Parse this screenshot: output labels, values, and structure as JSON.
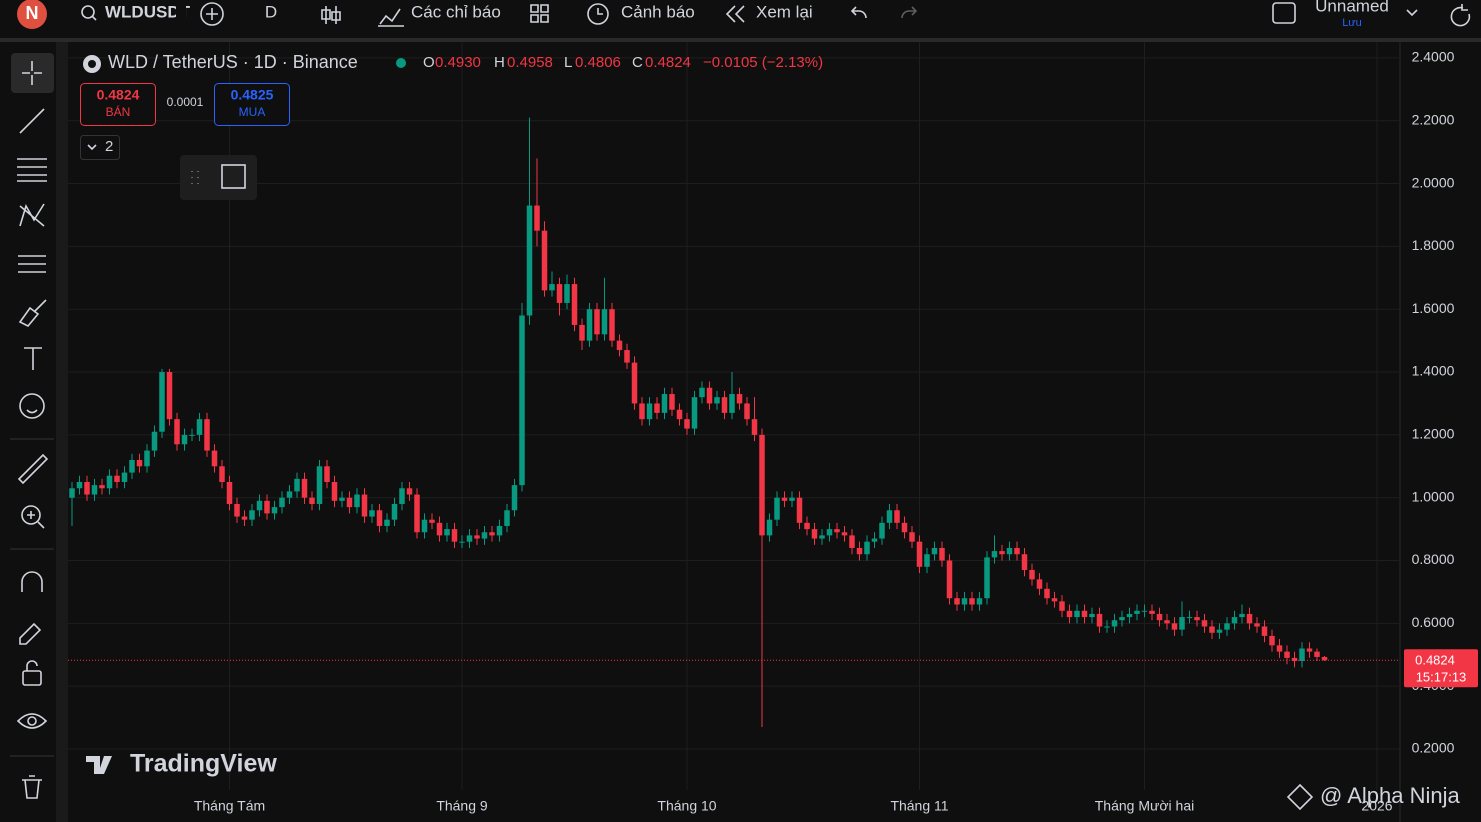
{
  "toolbar": {
    "logo": "N",
    "symbol": "WLDUSDT",
    "interval": "D",
    "indicators": "Các chỉ báo",
    "alerts": "Cảnh báo",
    "replay": "Xem lại",
    "layout_name": "Unnamed",
    "save": "Lưu"
  },
  "chart_data": {
    "type": "candlestick",
    "title": "WLD / TetherUS · 1D · Binance",
    "ohlc_legend": [
      {
        "label": "O",
        "value": "0.4930"
      },
      {
        "label": "H",
        "value": "0.4958"
      },
      {
        "label": "L",
        "value": "0.4806"
      },
      {
        "label": "C",
        "value": "0.4824"
      }
    ],
    "change": "−0.0105 (−2.13%)",
    "trade": {
      "sell_price": 0.4824,
      "sell_label": "BÁN",
      "spread": 0.0001,
      "buy_price": 0.4825,
      "buy_label": "MUA"
    },
    "indicator_count": "2",
    "categories": [
      null,
      null,
      null,
      null,
      null,
      null,
      null,
      null,
      null,
      null,
      null,
      null,
      null,
      null,
      null,
      null,
      null,
      null,
      null,
      null,
      null,
      "Tháng Tám",
      null,
      null,
      null,
      null,
      null,
      null,
      null,
      null,
      null,
      null,
      null,
      null,
      null,
      null,
      null,
      null,
      null,
      null,
      null,
      null,
      null,
      null,
      null,
      null,
      null,
      null,
      null,
      null,
      null,
      null,
      "Tháng 9",
      null,
      null,
      null,
      null,
      null,
      null,
      null,
      null,
      null,
      null,
      null,
      null,
      null,
      null,
      null,
      null,
      null,
      null,
      null,
      null,
      null,
      null,
      null,
      null,
      null,
      null,
      null,
      null,
      null,
      "Tháng 10",
      null,
      null,
      null,
      null,
      null,
      null,
      null,
      null,
      null,
      null,
      null,
      null,
      null,
      null,
      null,
      null,
      null,
      null,
      null,
      null,
      null,
      null,
      null,
      null,
      null,
      null,
      null,
      null,
      null,
      null,
      "Tháng 11",
      null,
      null,
      null,
      null,
      null,
      null,
      null,
      null,
      null,
      null,
      null,
      null,
      null,
      null,
      null,
      null,
      null,
      null,
      null,
      null,
      null,
      null,
      null,
      null,
      null,
      null,
      null,
      null,
      null,
      "Tháng Mười hai",
      null,
      null,
      null,
      null,
      null,
      null,
      null,
      null,
      null,
      null,
      null,
      null,
      null,
      null,
      null,
      null,
      null,
      null,
      null,
      null,
      null,
      null,
      null,
      null,
      null,
      null,
      null,
      null,
      null,
      null,
      "2026"
    ],
    "open": [
      1.0,
      1.03,
      1.05,
      1.01,
      1.04,
      1.03,
      1.07,
      1.05,
      1.08,
      1.12,
      1.1,
      1.15,
      1.21,
      1.4,
      1.25,
      1.17,
      1.2,
      1.2,
      1.25,
      1.15,
      1.1,
      1.05,
      0.98,
      0.94,
      0.93,
      0.96,
      0.99,
      0.95,
      0.97,
      1.0,
      1.02,
      1.06,
      1.0,
      0.98,
      1.1,
      1.05,
      0.99,
      1.0,
      0.97,
      1.01,
      0.94,
      0.96,
      0.91,
      0.93,
      0.98,
      1.03,
      1.01,
      0.89,
      0.93,
      0.92,
      0.88,
      0.9,
      0.86,
      0.86,
      0.88,
      0.87,
      0.89,
      0.88,
      0.91,
      0.96,
      1.04,
      1.58,
      1.93,
      1.85,
      1.66,
      1.68,
      1.62,
      1.68,
      1.55,
      1.5,
      1.6,
      1.52,
      1.6,
      1.5,
      1.47,
      1.43,
      1.3,
      1.25,
      1.3,
      1.27,
      1.33,
      1.28,
      1.25,
      1.22,
      1.32,
      1.35,
      1.3,
      1.32,
      1.27,
      1.33,
      1.3,
      1.25,
      1.2,
      0.88,
      0.93,
      1.0,
      0.99,
      1.0,
      0.92,
      0.9,
      0.87,
      0.88,
      0.9,
      0.89,
      0.88,
      0.84,
      0.82,
      0.86,
      0.87,
      0.92,
      0.96,
      0.92,
      0.89,
      0.86,
      0.78,
      0.82,
      0.84,
      0.8,
      0.68,
      0.66,
      0.68,
      0.66,
      0.68,
      0.81,
      0.83,
      0.82,
      0.84,
      0.82,
      0.77,
      0.74,
      0.71,
      0.68,
      0.67,
      0.64,
      0.62,
      0.64,
      0.62,
      0.63,
      0.59,
      0.59,
      0.61,
      0.62,
      0.63,
      0.64,
      0.64,
      0.63,
      0.61,
      0.6,
      0.58,
      0.62,
      0.62,
      0.61,
      0.59,
      0.57,
      0.58,
      0.6,
      0.62,
      0.63,
      0.6,
      0.59,
      0.56,
      0.53,
      0.51,
      0.49,
      0.48,
      0.52,
      0.51,
      0.493,
      null,
      null,
      null,
      null,
      null,
      null,
      null
    ],
    "high": [
      1.05,
      1.07,
      1.07,
      1.06,
      1.06,
      1.09,
      1.09,
      1.1,
      1.14,
      1.14,
      1.17,
      1.23,
      1.41,
      1.41,
      1.27,
      1.22,
      1.22,
      1.27,
      1.27,
      1.17,
      1.12,
      1.07,
      1.0,
      0.96,
      0.98,
      1.01,
      1.01,
      0.99,
      1.02,
      1.04,
      1.08,
      1.08,
      1.02,
      1.12,
      1.12,
      1.07,
      1.02,
      1.02,
      1.03,
      1.03,
      0.98,
      0.98,
      0.95,
      1.0,
      1.05,
      1.05,
      1.03,
      0.95,
      0.95,
      0.94,
      0.92,
      0.92,
      0.88,
      0.9,
      0.9,
      0.91,
      0.91,
      0.93,
      0.98,
      1.06,
      1.62,
      2.21,
      2.08,
      1.88,
      1.72,
      1.7,
      1.71,
      1.7,
      1.57,
      1.62,
      1.62,
      1.7,
      1.62,
      1.52,
      1.49,
      1.45,
      1.32,
      1.32,
      1.32,
      1.35,
      1.35,
      1.3,
      1.27,
      1.34,
      1.37,
      1.37,
      1.34,
      1.34,
      1.4,
      1.35,
      1.32,
      1.32,
      1.22,
      0.95,
      1.02,
      1.02,
      1.02,
      1.02,
      0.94,
      0.92,
      0.9,
      0.92,
      0.92,
      0.91,
      0.9,
      0.86,
      0.88,
      0.89,
      0.94,
      0.98,
      0.98,
      0.94,
      0.91,
      0.88,
      0.84,
      0.86,
      0.86,
      0.82,
      0.7,
      0.7,
      0.7,
      0.7,
      0.83,
      0.88,
      0.85,
      0.86,
      0.86,
      0.84,
      0.79,
      0.76,
      0.73,
      0.7,
      0.69,
      0.66,
      0.66,
      0.66,
      0.65,
      0.65,
      0.61,
      0.63,
      0.64,
      0.65,
      0.66,
      0.66,
      0.66,
      0.65,
      0.63,
      0.62,
      0.67,
      0.64,
      0.64,
      0.63,
      0.61,
      0.6,
      0.62,
      0.64,
      0.66,
      0.65,
      0.62,
      0.61,
      0.58,
      0.55,
      0.53,
      0.51,
      0.54,
      0.54,
      0.52,
      0.4958,
      null,
      null,
      null,
      null,
      null,
      null,
      null
    ],
    "low": [
      0.91,
      1.01,
      0.99,
      0.99,
      1.01,
      1.01,
      1.03,
      1.03,
      1.06,
      1.08,
      1.08,
      1.13,
      1.19,
      1.23,
      1.15,
      1.15,
      1.18,
      1.18,
      1.13,
      1.08,
      1.03,
      0.96,
      0.92,
      0.91,
      0.91,
      0.94,
      0.93,
      0.93,
      0.95,
      0.98,
      1.0,
      0.98,
      0.96,
      0.96,
      1.03,
      0.97,
      0.97,
      0.95,
      0.95,
      0.92,
      0.92,
      0.89,
      0.89,
      0.91,
      0.96,
      0.99,
      0.87,
      0.87,
      0.9,
      0.86,
      0.86,
      0.84,
      0.84,
      0.84,
      0.85,
      0.85,
      0.86,
      0.86,
      0.89,
      0.94,
      1.02,
      1.55,
      1.8,
      1.64,
      1.64,
      1.58,
      1.6,
      1.53,
      1.47,
      1.48,
      1.5,
      1.5,
      1.48,
      1.45,
      1.41,
      1.28,
      1.23,
      1.23,
      1.25,
      1.25,
      1.26,
      1.23,
      1.2,
      1.2,
      1.3,
      1.28,
      1.28,
      1.25,
      1.25,
      1.28,
      1.23,
      1.18,
      0.27,
      0.86,
      0.91,
      0.97,
      0.97,
      0.9,
      0.88,
      0.85,
      0.85,
      0.86,
      0.87,
      0.86,
      0.82,
      0.8,
      0.8,
      0.84,
      0.85,
      0.9,
      0.9,
      0.87,
      0.84,
      0.76,
      0.76,
      0.8,
      0.78,
      0.66,
      0.64,
      0.64,
      0.64,
      0.64,
      0.66,
      0.79,
      0.8,
      0.8,
      0.8,
      0.75,
      0.72,
      0.69,
      0.66,
      0.65,
      0.62,
      0.6,
      0.6,
      0.6,
      0.6,
      0.57,
      0.57,
      0.57,
      0.59,
      0.6,
      0.61,
      0.62,
      0.61,
      0.59,
      0.58,
      0.56,
      0.56,
      0.6,
      0.59,
      0.57,
      0.55,
      0.55,
      0.56,
      0.58,
      0.6,
      0.58,
      0.57,
      0.54,
      0.51,
      0.49,
      0.47,
      0.46,
      0.46,
      0.49,
      0.48,
      0.4806,
      null,
      null,
      null,
      null,
      null,
      null,
      null
    ],
    "close": [
      1.03,
      1.05,
      1.01,
      1.04,
      1.03,
      1.07,
      1.05,
      1.08,
      1.12,
      1.1,
      1.15,
      1.21,
      1.4,
      1.25,
      1.17,
      1.2,
      1.2,
      1.25,
      1.15,
      1.1,
      1.05,
      0.98,
      0.94,
      0.93,
      0.96,
      0.99,
      0.95,
      0.97,
      1.0,
      1.02,
      1.06,
      1.0,
      0.98,
      1.1,
      1.05,
      0.99,
      1.0,
      0.97,
      1.01,
      0.94,
      0.96,
      0.91,
      0.93,
      0.98,
      1.03,
      1.01,
      0.89,
      0.93,
      0.92,
      0.88,
      0.9,
      0.86,
      0.86,
      0.88,
      0.87,
      0.89,
      0.88,
      0.91,
      0.96,
      1.04,
      1.58,
      1.93,
      1.85,
      1.66,
      1.68,
      1.62,
      1.68,
      1.55,
      1.5,
      1.6,
      1.52,
      1.6,
      1.5,
      1.47,
      1.43,
      1.3,
      1.25,
      1.3,
      1.27,
      1.33,
      1.28,
      1.25,
      1.22,
      1.32,
      1.35,
      1.3,
      1.32,
      1.27,
      1.33,
      1.3,
      1.25,
      1.2,
      0.88,
      0.93,
      1.0,
      0.99,
      1.0,
      0.92,
      0.9,
      0.87,
      0.88,
      0.9,
      0.89,
      0.88,
      0.84,
      0.82,
      0.86,
      0.87,
      0.92,
      0.96,
      0.92,
      0.89,
      0.86,
      0.78,
      0.82,
      0.84,
      0.8,
      0.68,
      0.66,
      0.68,
      0.66,
      0.68,
      0.81,
      0.83,
      0.82,
      0.84,
      0.82,
      0.77,
      0.74,
      0.71,
      0.68,
      0.67,
      0.64,
      0.62,
      0.64,
      0.62,
      0.63,
      0.59,
      0.59,
      0.61,
      0.62,
      0.63,
      0.64,
      0.64,
      0.63,
      0.61,
      0.6,
      0.58,
      0.62,
      0.62,
      0.61,
      0.59,
      0.57,
      0.58,
      0.6,
      0.62,
      0.63,
      0.6,
      0.59,
      0.56,
      0.53,
      0.51,
      0.49,
      0.48,
      0.52,
      0.51,
      0.493,
      0.4824,
      null,
      null,
      null,
      null,
      null,
      null,
      null
    ],
    "up_color": "#089981",
    "down_color": "#f23645",
    "ylim": [
      0.0695,
      2.457
    ],
    "yticks": [
      {
        "value": 0.2,
        "label": "0.2000"
      },
      {
        "value": 0.4,
        "label": "0.4000"
      },
      {
        "value": 0.6,
        "label": "0.6000"
      },
      {
        "value": 0.8,
        "label": "0.8000"
      },
      {
        "value": 1.0,
        "label": "1.0000"
      },
      {
        "value": 1.2,
        "label": "1.2000"
      },
      {
        "value": 1.4,
        "label": "1.4000"
      },
      {
        "value": 1.6,
        "label": "1.6000"
      },
      {
        "value": 1.8,
        "label": "1.8000"
      },
      {
        "value": 2.0,
        "label": "2.0000"
      },
      {
        "value": 2.2,
        "label": "2.2000"
      },
      {
        "value": 2.4,
        "label": "2.4000"
      }
    ],
    "grid": true,
    "last_price_label": "0.4824",
    "countdown": "15:17:13",
    "watermark": "TradingView"
  },
  "overlay": {
    "credit": "@ Alpha Ninja"
  }
}
